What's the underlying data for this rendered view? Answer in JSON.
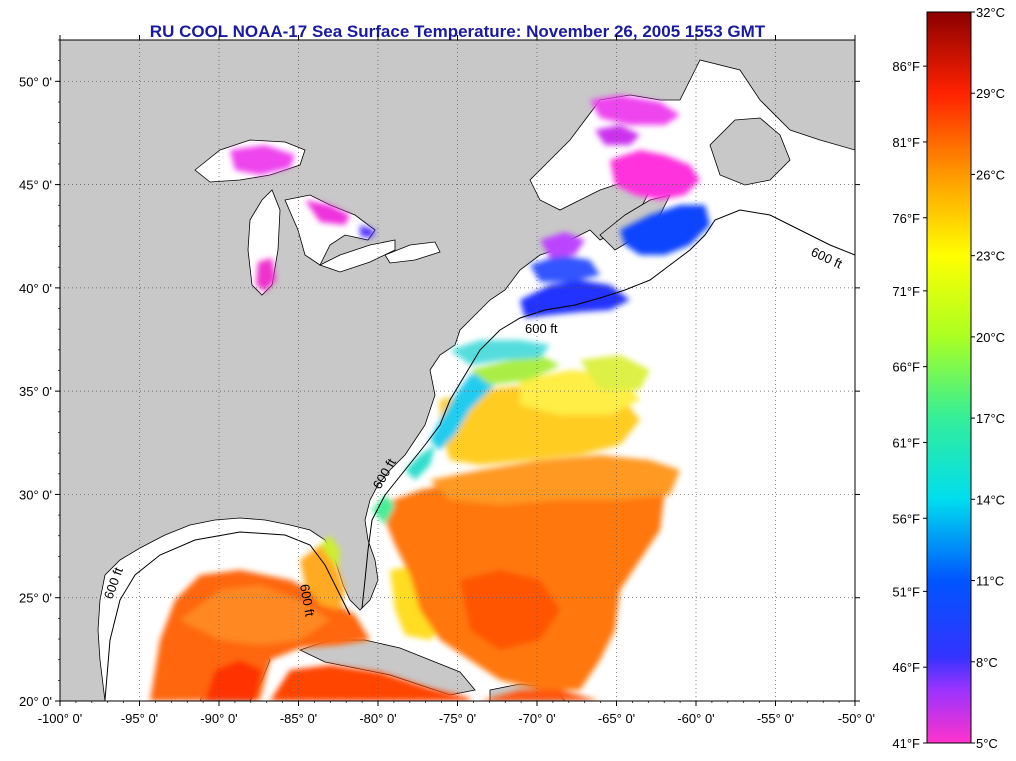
{
  "title": "RU COOL  NOAA-17  Sea Surface Temperature:  November 26, 2005 1553 GMT",
  "map": {
    "lon_range": [
      -100,
      -50
    ],
    "lat_range": [
      20,
      52
    ],
    "lat_ticks": [
      {
        "value": 20,
        "label": "20° 0'"
      },
      {
        "value": 25,
        "label": "25° 0'"
      },
      {
        "value": 30,
        "label": "30° 0'"
      },
      {
        "value": 35,
        "label": "35° 0'"
      },
      {
        "value": 40,
        "label": "40° 0'"
      },
      {
        "value": 45,
        "label": "45° 0'"
      },
      {
        "value": 50,
        "label": "50° 0'"
      }
    ],
    "lon_ticks": [
      {
        "value": -100,
        "label": "-100° 0'"
      },
      {
        "value": -95,
        "label": "-95° 0'"
      },
      {
        "value": -90,
        "label": "-90° 0'"
      },
      {
        "value": -85,
        "label": "-85° 0'"
      },
      {
        "value": -80,
        "label": "-80° 0'"
      },
      {
        "value": -75,
        "label": "-75° 0'"
      },
      {
        "value": -70,
        "label": "-70° 0'"
      },
      {
        "value": -65,
        "label": "-65° 0'"
      },
      {
        "value": -60,
        "label": "-60° 0'"
      },
      {
        "value": -55,
        "label": "-55° 0'"
      },
      {
        "value": -50,
        "label": "-50° 0'"
      }
    ],
    "grid": true,
    "land_color": "#c8c8c8",
    "contour_label": "600 ft"
  },
  "colorbar": {
    "range_c": [
      5,
      32
    ],
    "celsius_labels": [
      {
        "value": 32,
        "label": "32°C"
      },
      {
        "value": 29,
        "label": "29°C"
      },
      {
        "value": 26,
        "label": "26°C"
      },
      {
        "value": 23,
        "label": "23°C"
      },
      {
        "value": 20,
        "label": "20°C"
      },
      {
        "value": 17,
        "label": "17°C"
      },
      {
        "value": 14,
        "label": "14°C"
      },
      {
        "value": 11,
        "label": "11°C"
      },
      {
        "value": 8,
        "label": "8°C"
      },
      {
        "value": 5,
        "label": "5°C"
      }
    ],
    "fahrenheit_labels": [
      {
        "value_c": 30,
        "label": "86°F"
      },
      {
        "value_c": 27.2,
        "label": "81°F"
      },
      {
        "value_c": 24.4,
        "label": "76°F"
      },
      {
        "value_c": 21.7,
        "label": "71°F"
      },
      {
        "value_c": 18.9,
        "label": "66°F"
      },
      {
        "value_c": 16.1,
        "label": "61°F"
      },
      {
        "value_c": 13.3,
        "label": "56°F"
      },
      {
        "value_c": 10.6,
        "label": "51°F"
      },
      {
        "value_c": 7.8,
        "label": "46°F"
      },
      {
        "value_c": 5,
        "label": "41°F"
      }
    ],
    "stops": [
      {
        "c": 5,
        "color": "#ff33cc"
      },
      {
        "c": 7,
        "color": "#9933ff"
      },
      {
        "c": 8.2,
        "color": "#3333ff"
      },
      {
        "c": 11,
        "color": "#0055ff"
      },
      {
        "c": 14,
        "color": "#00ddee"
      },
      {
        "c": 17,
        "color": "#33ee99"
      },
      {
        "c": 20,
        "color": "#aaff22"
      },
      {
        "c": 23,
        "color": "#ffff00"
      },
      {
        "c": 26,
        "color": "#ff9900"
      },
      {
        "c": 29,
        "color": "#ff2200"
      },
      {
        "c": 32,
        "color": "#8b0000"
      }
    ]
  }
}
